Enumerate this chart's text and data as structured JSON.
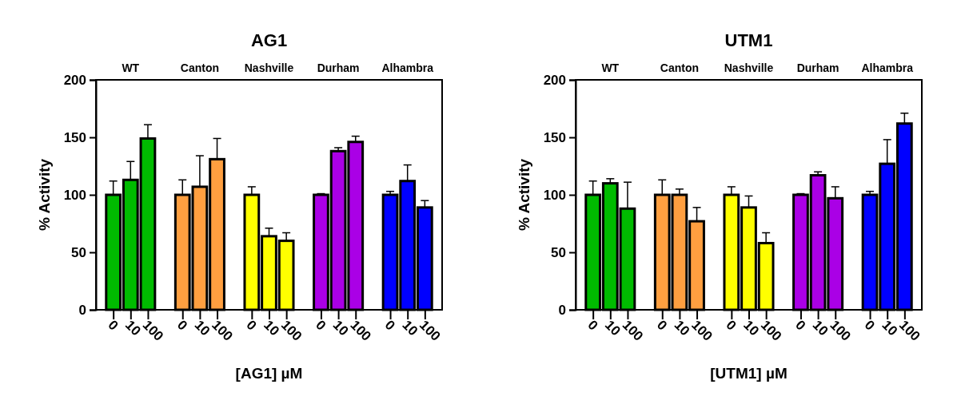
{
  "chart_data": [
    {
      "type": "bar",
      "title": "AG1",
      "xlabel": "[AG1] µM",
      "ylabel": "% Activity",
      "categories": [
        "0",
        "10",
        "100",
        null,
        "0",
        "10",
        "100",
        null,
        "0",
        "10",
        "100",
        null,
        "0",
        "10",
        "100",
        null,
        "0",
        "10",
        "100"
      ],
      "ylim": [
        0,
        200
      ],
      "yticks": [
        0,
        50,
        100,
        150,
        200
      ],
      "grid": false,
      "annotations": [
        "WT",
        "Canton",
        "Nashville",
        "Durham",
        "Alhambra"
      ],
      "series": [
        {
          "color": "#00bb00",
          "values": [
            100,
            113,
            149,
            null,
            null,
            null,
            null,
            null,
            null,
            null,
            null,
            null,
            null,
            null,
            null,
            null,
            null,
            null,
            null
          ],
          "errors": [
            [
              100,
              112
            ],
            [
              113,
              129
            ],
            [
              149,
              161
            ],
            null,
            null,
            null,
            null,
            null,
            null,
            null,
            null,
            null,
            null,
            null,
            null,
            null,
            null,
            null,
            null
          ]
        },
        {
          "color": "#ff9f40",
          "values": [
            null,
            null,
            null,
            null,
            100,
            107,
            131,
            null,
            null,
            null,
            null,
            null,
            null,
            null,
            null,
            null,
            null,
            null,
            null
          ],
          "errors": [
            null,
            null,
            null,
            null,
            [
              100,
              113
            ],
            [
              107,
              134
            ],
            [
              131,
              149
            ],
            null,
            null,
            null,
            null,
            null,
            null,
            null,
            null,
            null,
            null,
            null,
            null
          ]
        },
        {
          "color": "#ffff00",
          "values": [
            null,
            null,
            null,
            null,
            null,
            null,
            null,
            null,
            100,
            64,
            60,
            null,
            null,
            null,
            null,
            null,
            null,
            null,
            null
          ],
          "errors": [
            null,
            null,
            null,
            null,
            null,
            null,
            null,
            null,
            [
              100,
              107
            ],
            [
              64,
              71
            ],
            [
              60,
              67
            ],
            null,
            null,
            null,
            null,
            null,
            null,
            null,
            null
          ]
        },
        {
          "color": "#aa00e6",
          "values": [
            null,
            null,
            null,
            null,
            null,
            null,
            null,
            null,
            null,
            null,
            null,
            null,
            100,
            138,
            146,
            null,
            null,
            null,
            null
          ],
          "errors": [
            null,
            null,
            null,
            null,
            null,
            null,
            null,
            null,
            null,
            null,
            null,
            null,
            [
              100,
              101
            ],
            [
              138,
              141
            ],
            [
              146,
              151
            ],
            null,
            null,
            null,
            null
          ]
        },
        {
          "color": "#0000ff",
          "values": [
            null,
            null,
            null,
            null,
            null,
            null,
            null,
            null,
            null,
            null,
            null,
            null,
            null,
            null,
            null,
            null,
            100,
            112,
            89
          ],
          "errors": [
            null,
            null,
            null,
            null,
            null,
            null,
            null,
            null,
            null,
            null,
            null,
            null,
            null,
            null,
            null,
            null,
            [
              100,
              103
            ],
            [
              112,
              126
            ],
            [
              89,
              95
            ]
          ]
        }
      ]
    },
    {
      "type": "bar",
      "title": "UTM1",
      "xlabel": "[UTM1] µM",
      "ylabel": "% Activity",
      "categories": [
        "0",
        "10",
        "100",
        null,
        "0",
        "10",
        "100",
        null,
        "0",
        "10",
        "100",
        null,
        "0",
        "10",
        "100",
        null,
        "0",
        "10",
        "100"
      ],
      "ylim": [
        0,
        200
      ],
      "yticks": [
        0,
        50,
        100,
        150,
        200
      ],
      "grid": false,
      "annotations": [
        "WT",
        "Canton",
        "Nashville",
        "Durham",
        "Alhambra"
      ],
      "series": [
        {
          "color": "#00bb00",
          "values": [
            100,
            110,
            88,
            null,
            null,
            null,
            null,
            null,
            null,
            null,
            null,
            null,
            null,
            null,
            null,
            null,
            null,
            null,
            null
          ],
          "errors": [
            [
              100,
              112
            ],
            [
              110,
              114
            ],
            [
              88,
              111
            ],
            null,
            null,
            null,
            null,
            null,
            null,
            null,
            null,
            null,
            null,
            null,
            null,
            null,
            null,
            null,
            null
          ]
        },
        {
          "color": "#ff9f40",
          "values": [
            null,
            null,
            null,
            null,
            100,
            100,
            77,
            null,
            null,
            null,
            null,
            null,
            null,
            null,
            null,
            null,
            null,
            null,
            null
          ],
          "errors": [
            null,
            null,
            null,
            null,
            [
              100,
              113
            ],
            [
              100,
              105
            ],
            [
              77,
              89
            ],
            null,
            null,
            null,
            null,
            null,
            null,
            null,
            null,
            null,
            null,
            null,
            null
          ]
        },
        {
          "color": "#ffff00",
          "values": [
            null,
            null,
            null,
            null,
            null,
            null,
            null,
            null,
            100,
            89,
            58,
            null,
            null,
            null,
            null,
            null,
            null,
            null,
            null
          ],
          "errors": [
            null,
            null,
            null,
            null,
            null,
            null,
            null,
            null,
            [
              100,
              107
            ],
            [
              89,
              99
            ],
            [
              58,
              67
            ],
            null,
            null,
            null,
            null,
            null,
            null,
            null,
            null
          ]
        },
        {
          "color": "#aa00e6",
          "values": [
            null,
            null,
            null,
            null,
            null,
            null,
            null,
            null,
            null,
            null,
            null,
            null,
            100,
            117,
            97,
            null,
            null,
            null,
            null
          ],
          "errors": [
            null,
            null,
            null,
            null,
            null,
            null,
            null,
            null,
            null,
            null,
            null,
            null,
            [
              100,
              101
            ],
            [
              117,
              120
            ],
            [
              97,
              107
            ],
            null,
            null,
            null,
            null
          ]
        },
        {
          "color": "#0000ff",
          "values": [
            null,
            null,
            null,
            null,
            null,
            null,
            null,
            null,
            null,
            null,
            null,
            null,
            null,
            null,
            null,
            null,
            100,
            127,
            162
          ],
          "errors": [
            null,
            null,
            null,
            null,
            null,
            null,
            null,
            null,
            null,
            null,
            null,
            null,
            null,
            null,
            null,
            null,
            [
              100,
              103
            ],
            [
              127,
              148
            ],
            [
              162,
              171
            ]
          ]
        }
      ]
    }
  ]
}
